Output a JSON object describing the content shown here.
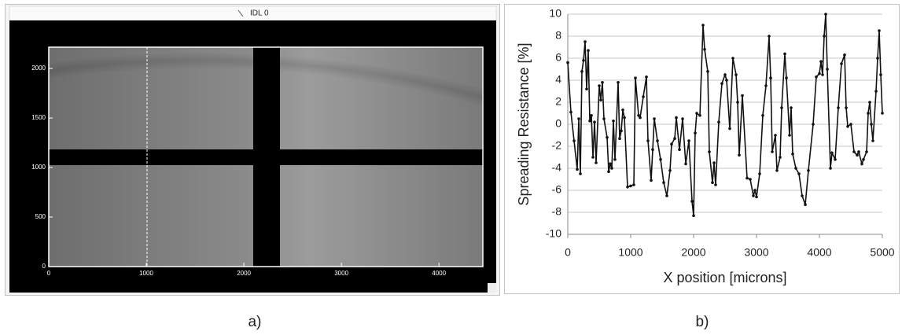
{
  "chart_data": [
    {
      "type": "image",
      "window_title": "IDL 0",
      "panel_label": "a)",
      "xlim": [
        0,
        4450
      ],
      "ylim": [
        0,
        2215
      ],
      "xticks": [
        0,
        1000,
        2000,
        3000,
        4000
      ],
      "yticks": [
        0,
        500,
        1000,
        1500,
        2000
      ]
    },
    {
      "type": "line",
      "panel_label": "b)",
      "x_label": "X position [microns]",
      "y_label": "Spreading Resistance [%]",
      "xlim": [
        0,
        5000
      ],
      "ylim": [
        -10,
        10
      ],
      "xticks": [
        0,
        1000,
        2000,
        3000,
        4000,
        5000
      ],
      "yticks": [
        -10,
        -8,
        -6,
        -4,
        -2,
        0,
        2,
        4,
        6,
        8,
        10
      ],
      "grid": true,
      "markers": true,
      "x": [
        0,
        50,
        100,
        150,
        175,
        200,
        225,
        250,
        275,
        300,
        325,
        350,
        375,
        400,
        425,
        450,
        500,
        525,
        550,
        575,
        625,
        650,
        675,
        700,
        725,
        750,
        800,
        825,
        850,
        875,
        900,
        950,
        1000,
        1050,
        1075,
        1125,
        1150,
        1200,
        1250,
        1275,
        1325,
        1350,
        1375,
        1425,
        1475,
        1525,
        1575,
        1625,
        1650,
        1700,
        1725,
        1775,
        1825,
        1875,
        1925,
        1975,
        2000,
        2025,
        2050,
        2100,
        2150,
        2175,
        2225,
        2250,
        2300,
        2325,
        2350,
        2400,
        2450,
        2500,
        2525,
        2575,
        2625,
        2675,
        2700,
        2725,
        2775,
        2850,
        2900,
        2950,
        2975,
        3000,
        3050,
        3100,
        3150,
        3200,
        3225,
        3250,
        3300,
        3325,
        3375,
        3400,
        3450,
        3475,
        3525,
        3550,
        3575,
        3625,
        3675,
        3725,
        3775,
        3825,
        3900,
        3950,
        4000,
        4025,
        4050,
        4075,
        4100,
        4125,
        4175,
        4200,
        4250,
        4300,
        4350,
        4400,
        4425,
        4450,
        4500,
        4550,
        4600,
        4625,
        4675,
        4700,
        4750,
        4775,
        4800,
        4825,
        4850,
        4900,
        4925,
        4950,
        4975,
        5000
      ],
      "series": [
        {
          "color": "#111111",
          "values": [
            5.6,
            1.1,
            -1.5,
            -4.1,
            0.5,
            -4.5,
            4.8,
            5.8,
            7.5,
            3.2,
            6.7,
            0.3,
            0.8,
            -3.0,
            0.2,
            -3.5,
            3.5,
            2.2,
            3.8,
            0.5,
            -1.2,
            -4.3,
            -3.6,
            -4.0,
            0.3,
            -3.2,
            3.8,
            -1.3,
            -0.6,
            1.3,
            0.6,
            -5.7,
            -5.6,
            -5.5,
            4.2,
            0.8,
            0.6,
            2.5,
            4.3,
            -1.5,
            -5.1,
            -2.3,
            0.5,
            -1.5,
            -3.2,
            -5.3,
            -6.5,
            -4.2,
            -1.8,
            -1.3,
            0.6,
            -2.3,
            0.5,
            -3.6,
            -1.5,
            -7.0,
            -8.3,
            -0.8,
            1.0,
            0.8,
            9.0,
            6.8,
            4.8,
            -2.5,
            -5.3,
            -3.5,
            -5.5,
            0.2,
            3.7,
            4.5,
            4.0,
            -0.4,
            6.0,
            4.5,
            2.0,
            -2.8,
            2.6,
            -4.9,
            -5.0,
            -6.5,
            -6.0,
            -6.6,
            -4.5,
            0.8,
            3.5,
            8.0,
            4.2,
            -2.5,
            -1.0,
            -4.2,
            -3.0,
            1.5,
            6.4,
            4.2,
            -1.0,
            1.5,
            -2.7,
            -4.0,
            -4.5,
            -6.5,
            -7.3,
            -4.2,
            0.0,
            4.3,
            4.6,
            5.7,
            4.5,
            8.0,
            10.0,
            5.0,
            -4.0,
            -2.6,
            -3.2,
            1.5,
            5.5,
            6.3,
            1.5,
            -0.2,
            0.0,
            -2.5,
            -2.8,
            -2.5,
            -3.6,
            -3.2,
            -2.5,
            1.0,
            2.0,
            0.0,
            -1.5,
            3.0,
            6.0,
            8.5,
            4.5,
            1.0
          ]
        }
      ]
    }
  ]
}
